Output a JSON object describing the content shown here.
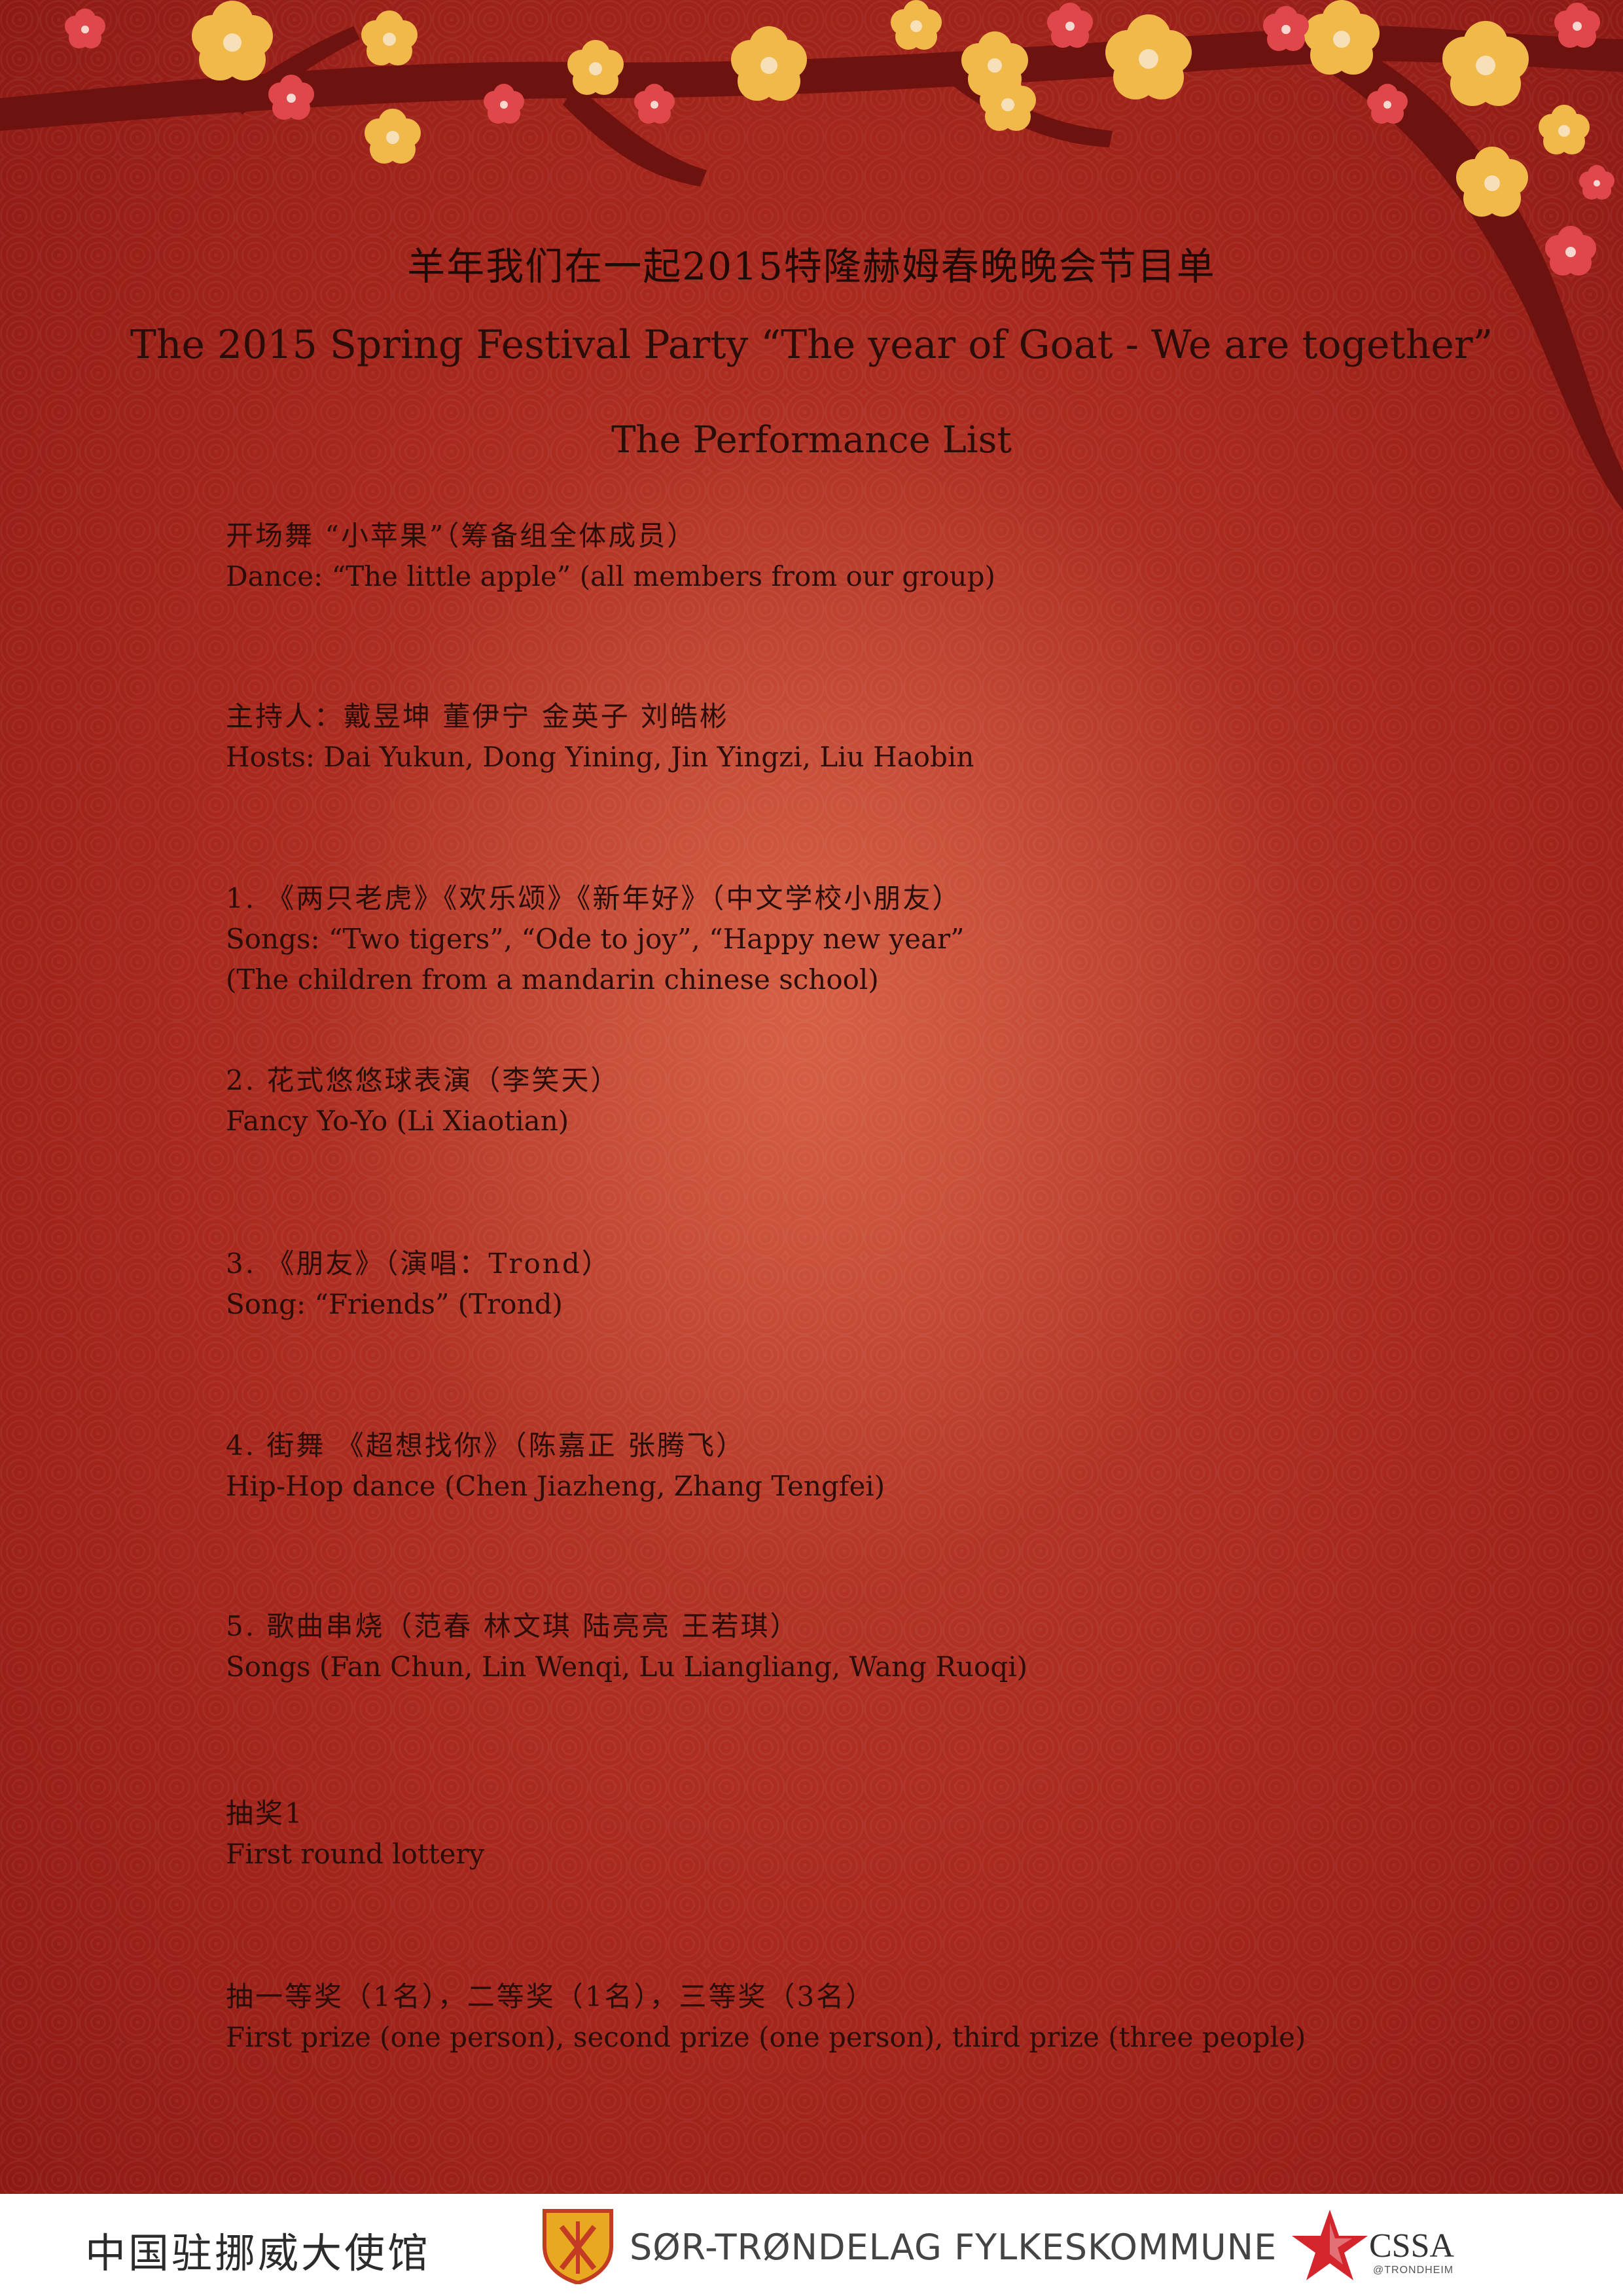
{
  "header": {
    "title_zh": "羊年我们在一起2015特隆赫姆春晚晚会节目单",
    "title_en": "The 2015 Spring Festival Party “The year of Goat - We are together”",
    "subtitle": "The Performance List"
  },
  "program": [
    {
      "zh": "开场舞 “小苹果”（筹备组全体成员）",
      "en": "Dance: “The little apple” (all members from our group)"
    },
    {
      "zh": "主持人：戴昱坤 董伊宁 金英子 刘皓彬",
      "en": "Hosts: Dai Yukun, Dong Yining, Jin Yingzi, Liu Haobin"
    },
    {
      "zh": "1. 《两只老虎》《欢乐颂》《新年好》（中文学校小朋友）",
      "en": "Songs: “Two tigers”, “Ode to joy”, “Happy new year”",
      "en2": "(The children from a mandarin chinese school)"
    },
    {
      "zh": "2. 花式悠悠球表演（李笑天）",
      "en": "Fancy Yo-Yo (Li Xiaotian)"
    },
    {
      "zh": "3. 《朋友》（演唱：Trond）",
      "en": "Song: “Friends” (Trond)"
    },
    {
      "zh": "4. 街舞 《超想找你》（陈嘉正 张腾飞）",
      "en": "Hip-Hop dance (Chen Jiazheng, Zhang Tengfei)"
    },
    {
      "zh": "5. 歌曲串烧（范春 林文琪 陆亮亮 王若琪）",
      "en": "Songs (Fan Chun, Lin Wenqi, Lu Liangliang, Wang Ruoqi)"
    },
    {
      "zh": "抽奖1",
      "en": "First round lottery"
    },
    {
      "zh": "抽一等奖（1名），二等奖（1名），三等奖（3名）",
      "en": "First prize (one person), second prize (one person), third prize (three people)"
    }
  ],
  "footer": {
    "embassy": "中国驻挪威大使馆",
    "county": "SØR-TRØNDELAG FYLKESKOMMUNE",
    "cssa": "CSSA",
    "cssa_sub": "@TRONDHEIM"
  },
  "colors": {
    "background_red": "#a8281d",
    "blossom_yellow": "#f0b94a",
    "blossom_red": "#e0474b",
    "branch": "#6e1210",
    "text": "#2a0d08"
  },
  "icons": [
    "plum-blossom-branch",
    "county-shield-icon",
    "cssa-star-icon"
  ]
}
